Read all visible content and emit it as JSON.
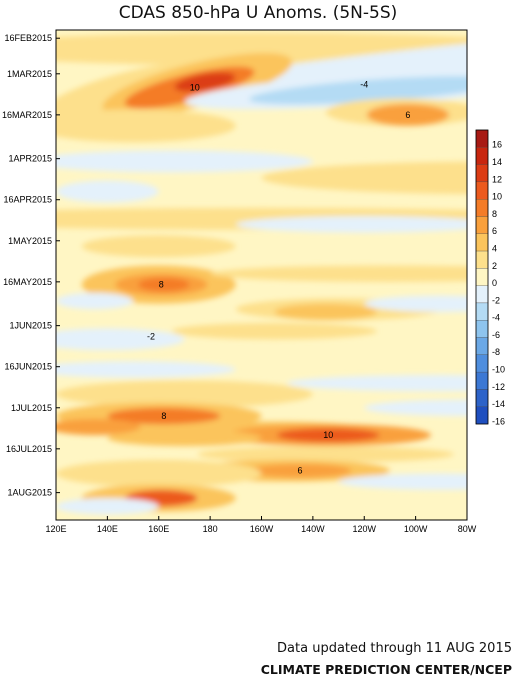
{
  "chart_data": {
    "type": "heatmap",
    "title": "CDAS 850-hPa U Anoms. (5N-5S)",
    "xlabel": "",
    "ylabel": "",
    "x_ticks": [
      "120E",
      "140E",
      "160E",
      "180",
      "160W",
      "140W",
      "120W",
      "100W",
      "80W"
    ],
    "y_ticks": [
      "16FEB2015",
      "1MAR2015",
      "16MAR2015",
      "1APR2015",
      "16APR2015",
      "1MAY2015",
      "16MAY2015",
      "1JUN2015",
      "16JUN2015",
      "1JUL2015",
      "16JUL2015",
      "1AUG2015"
    ],
    "x_range": [
      "120E",
      "80W"
    ],
    "y_range": [
      "13FEB2015",
      "11AUG2015"
    ],
    "y_direction": "time increases downward",
    "colorbar": {
      "levels": [
        "16",
        "14",
        "12",
        "10",
        "8",
        "6",
        "4",
        "2",
        "0",
        "-2",
        "-4",
        "-6",
        "-8",
        "-10",
        "-12",
        "-14",
        "-16"
      ],
      "colors": [
        "#a81a14",
        "#c8260f",
        "#dc3c14",
        "#ec5a1e",
        "#f47c28",
        "#f9a03c",
        "#fbc45c",
        "#fde08c",
        "#fff6c4",
        "#e4f1fb",
        "#b4dbf4",
        "#8ec4ee",
        "#6ba8e6",
        "#4f8ede",
        "#3c78d4",
        "#2d63c9",
        "#1f4fbf"
      ]
    },
    "features": [
      {
        "label": "10",
        "x": "174E",
        "y": "6MAR2015",
        "sign": "westerly"
      },
      {
        "label": "8",
        "x": "161E",
        "y": "17MAY2015",
        "sign": "westerly"
      },
      {
        "label": "8",
        "x": "162E",
        "y": "4JUL2015",
        "sign": "westerly"
      },
      {
        "label": "10",
        "x": "134W",
        "y": "11JUL2015",
        "sign": "westerly"
      },
      {
        "label": "6",
        "x": "145W",
        "y": "24JUL2015",
        "sign": "westerly"
      },
      {
        "label": "6",
        "x": "103W",
        "y": "16MAR2015",
        "sign": "westerly"
      },
      {
        "label": "-4",
        "x": "120W",
        "y": "5MAR2015",
        "sign": "easterly"
      },
      {
        "label": "-2",
        "x": "157E",
        "y": "5JUN2015",
        "sign": "easterly"
      }
    ]
  },
  "footer": {
    "updated": "Data updated through 11 AUG 2015",
    "center": "CLIMATE PREDICTION CENTER/NCEP"
  }
}
